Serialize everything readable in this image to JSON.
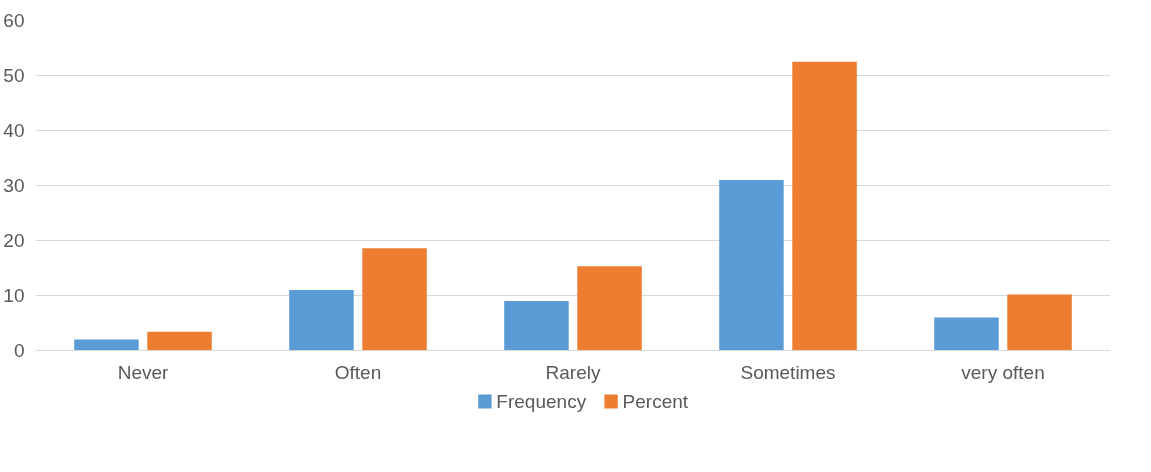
{
  "chart_data": {
    "type": "bar",
    "categories": [
      "Never",
      "Often",
      "Rarely",
      "Sometimes",
      "very often"
    ],
    "series": [
      {
        "name": "Frequency",
        "color": "#5b9bd5",
        "values": [
          2,
          11,
          9,
          31,
          6
        ]
      },
      {
        "name": "Percent",
        "color": "#ed7d31",
        "values": [
          3.4,
          18.6,
          15.3,
          52.5,
          10.2
        ]
      }
    ],
    "ylim": [
      0,
      60
    ],
    "yticks": [
      0,
      10,
      20,
      30,
      40,
      50,
      60
    ],
    "grid": "y",
    "legend": "bottom"
  }
}
